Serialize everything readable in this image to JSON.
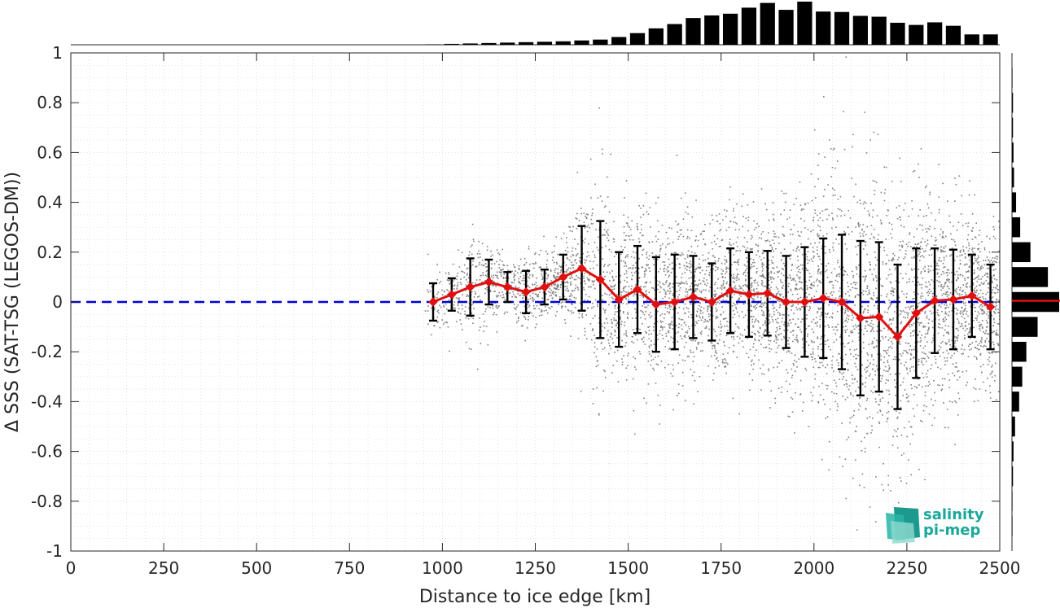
{
  "chart_data": {
    "type": "scatter",
    "xlabel": "Distance to ice edge [km]",
    "ylabel": "Δ SSS (SAT-TSG (LEGOS-DM))",
    "xlim": [
      0,
      2500
    ],
    "ylim": [
      -1,
      1
    ],
    "xticks": [
      "0",
      "250",
      "500",
      "750",
      "1000",
      "1250",
      "1500",
      "1750",
      "2000",
      "2250",
      "2500"
    ],
    "yticks": [
      "-1",
      "-0.8",
      "-0.6",
      "-0.4",
      "-0.2",
      "0",
      "0.2",
      "0.4",
      "0.6",
      "0.8",
      "1"
    ],
    "grid": true,
    "zero_line": {
      "y": 0,
      "color": "#0000dd",
      "style": "dashed"
    },
    "scatter_color": "#808080",
    "mean_color": "#e01010",
    "errorbar_color": "#000000",
    "series": [
      {
        "x": [
          975,
          1025,
          1075,
          1125,
          1175,
          1225,
          1275,
          1325,
          1375,
          1425,
          1475,
          1525,
          1575,
          1625,
          1675,
          1725,
          1775,
          1825,
          1875,
          1925,
          1975,
          2025,
          2075,
          2125,
          2175,
          2225,
          2275,
          2325,
          2375,
          2425,
          2475
        ],
        "mean": [
          0.0,
          0.03,
          0.06,
          0.08,
          0.06,
          0.04,
          0.06,
          0.1,
          0.135,
          0.09,
          0.01,
          0.05,
          -0.01,
          0.0,
          0.02,
          0.0,
          0.045,
          0.03,
          0.035,
          0.0,
          0.0,
          0.015,
          0.0,
          -0.065,
          -0.06,
          -0.14,
          -0.045,
          0.005,
          0.01,
          0.025,
          -0.02
        ],
        "std": [
          0.075,
          0.065,
          0.115,
          0.09,
          0.06,
          0.085,
          0.07,
          0.09,
          0.17,
          0.235,
          0.19,
          0.175,
          0.19,
          0.19,
          0.165,
          0.155,
          0.17,
          0.17,
          0.17,
          0.185,
          0.22,
          0.24,
          0.27,
          0.31,
          0.3,
          0.29,
          0.26,
          0.21,
          0.2,
          0.165,
          0.17
        ]
      }
    ],
    "hist_top": {
      "bin_centers": [
        975,
        1025,
        1075,
        1125,
        1175,
        1225,
        1275,
        1325,
        1375,
        1425,
        1475,
        1525,
        1575,
        1625,
        1675,
        1725,
        1775,
        1825,
        1875,
        1925,
        1975,
        2025,
        2075,
        2125,
        2175,
        2225,
        2275,
        2325,
        2375,
        2425,
        2475
      ],
      "counts": [
        1,
        2,
        3,
        4,
        5,
        6,
        7,
        8,
        10,
        12,
        18,
        27,
        38,
        48,
        62,
        68,
        72,
        86,
        97,
        81,
        100,
        77,
        76,
        67,
        65,
        51,
        46,
        52,
        44,
        24,
        24
      ]
    },
    "hist_right": {
      "bin_centers": [
        0.9,
        0.8,
        0.7,
        0.6,
        0.5,
        0.4,
        0.3,
        0.2,
        0.1,
        0.0,
        -0.1,
        -0.2,
        -0.3,
        -0.4,
        -0.5,
        -0.6,
        -0.7,
        -0.8,
        -0.9
      ],
      "counts": [
        0.5,
        1,
        1,
        1.5,
        2,
        4,
        8,
        18,
        35,
        46,
        25,
        14,
        10,
        7,
        3,
        1.5,
        1,
        0.5,
        0.5
      ],
      "median_color": "#e01010"
    }
  },
  "logo": {
    "line1": "salinity",
    "line2": "pi-mep"
  }
}
